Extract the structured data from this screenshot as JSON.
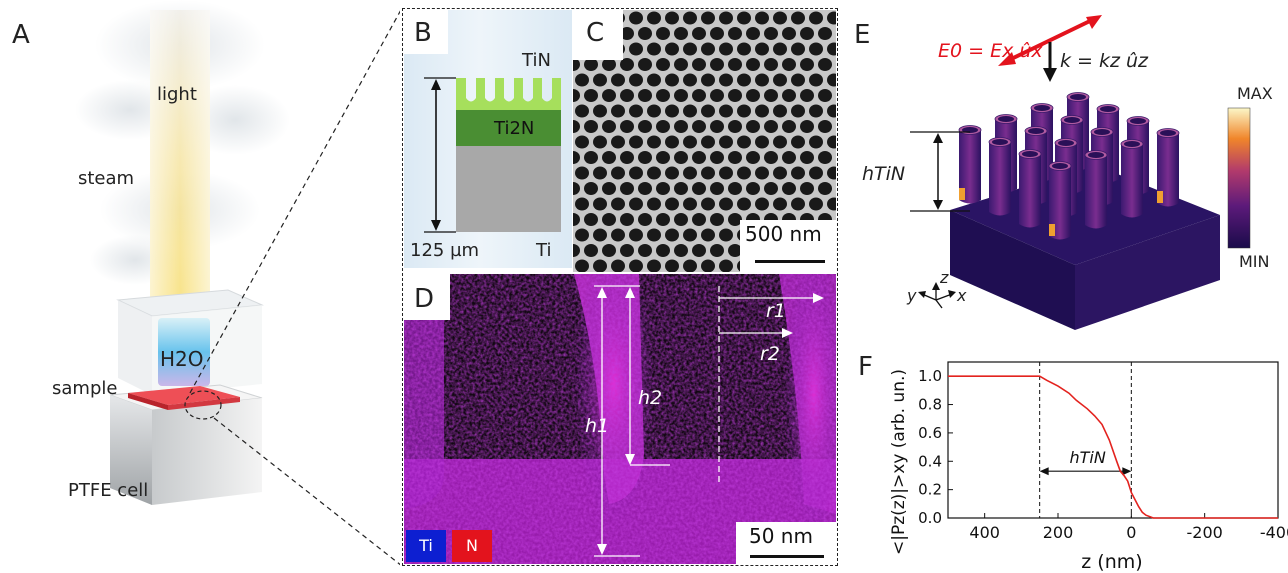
{
  "panels": {
    "a": {
      "letter": "A",
      "labels": {
        "light": "light",
        "steam": "steam",
        "h2o": "H2O",
        "sample": "sample",
        "cell": "PTFE cell"
      }
    },
    "b": {
      "letter": "B",
      "labels": {
        "tin": "TiN",
        "ti2n": "Ti2N",
        "ti": "Ti",
        "thickness": "125 µm"
      },
      "colors": {
        "tin": "#a6df5c",
        "ti2n": "#4a8e33",
        "ti": "#a8a8a8"
      }
    },
    "c": {
      "letter": "C",
      "scalebar": "500 nm"
    },
    "d": {
      "letter": "D",
      "scalebar": "50 nm",
      "legend": {
        "ti": "Ti",
        "n": "N"
      },
      "labels": {
        "h1": "h1",
        "h2": "h2",
        "r1": "r1",
        "r2": "r2"
      }
    },
    "e": {
      "letter": "E",
      "field_label": "E0 = Ex ûx",
      "wavevector_label": "k = kz ûz",
      "height_label": "hTiN",
      "colorbar": {
        "max": "MAX",
        "min": "MIN"
      },
      "axes": {
        "x": "x",
        "y": "y",
        "z": "z"
      }
    },
    "f": {
      "letter": "F"
    }
  },
  "chart_data": {
    "type": "line",
    "title": "",
    "xlabel": "z (nm)",
    "ylabel": "<|Pz(z)|>xy (arb. un.)",
    "xlim": [
      500,
      -400
    ],
    "ylim": [
      0,
      1.1
    ],
    "x_ticks": [
      400,
      200,
      0,
      -200,
      -400
    ],
    "x_tick_labels": [
      "400",
      "200",
      "0",
      "-200",
      "-400"
    ],
    "y_ticks": [
      0.0,
      0.2,
      0.4,
      0.6,
      0.8,
      1.0
    ],
    "y_tick_labels": [
      "0.0",
      "0.2",
      "0.4",
      "0.6",
      "0.8",
      "1.0"
    ],
    "markers": [
      250,
      0
    ],
    "annotation": "hTiN",
    "series": [
      {
        "color": "#e3231f",
        "x": [
          500,
          400,
          300,
          260,
          250,
          230,
          200,
          170,
          150,
          120,
          100,
          80,
          60,
          40,
          30,
          20,
          10,
          5,
          0,
          -10,
          -20,
          -30,
          -40,
          -60,
          -100,
          -200,
          -300,
          -400
        ],
        "y": [
          1.0,
          1.0,
          1.0,
          1.0,
          1.0,
          0.97,
          0.93,
          0.88,
          0.83,
          0.77,
          0.72,
          0.66,
          0.55,
          0.4,
          0.33,
          0.3,
          0.26,
          0.22,
          0.18,
          0.13,
          0.08,
          0.04,
          0.02,
          0.0,
          0.0,
          0.0,
          0.0,
          0.0
        ]
      }
    ]
  }
}
